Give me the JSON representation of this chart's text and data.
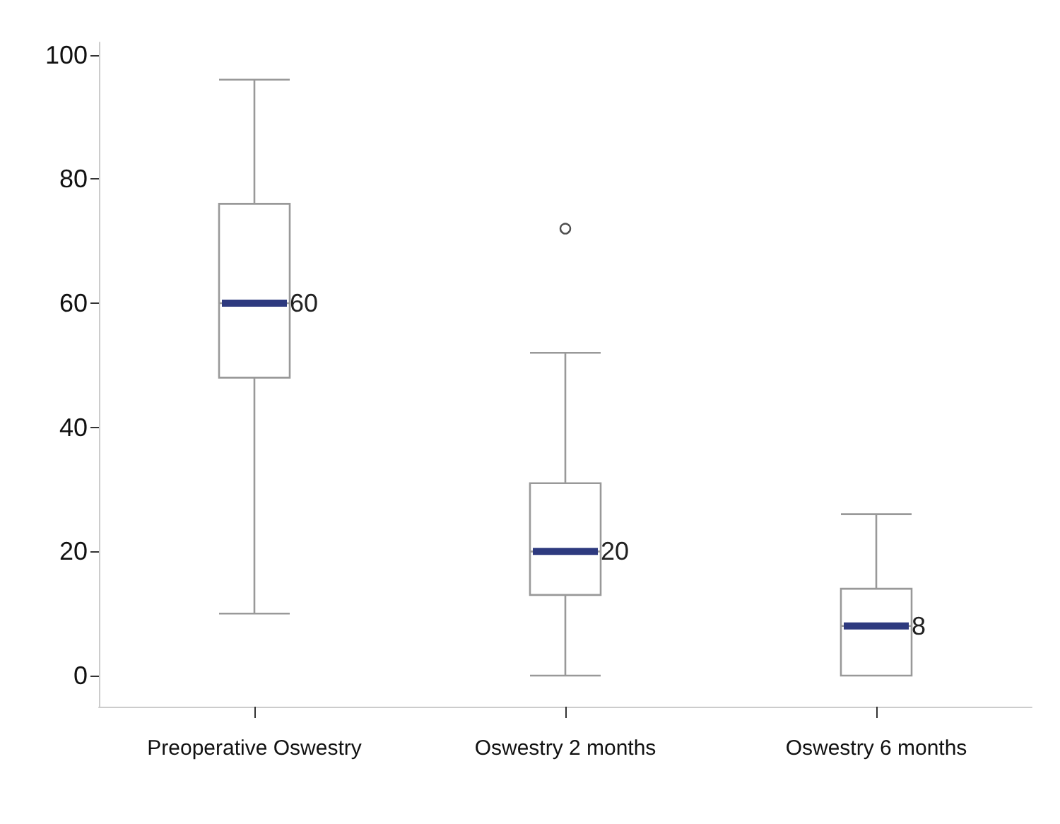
{
  "chart_data": {
    "type": "box",
    "categories": [
      "Preoperative Oswestry",
      "Oswestry 2 months",
      "Oswestry 6 months"
    ],
    "boxes": [
      {
        "low": 10,
        "q1": 48,
        "median": 60,
        "q3": 76,
        "high": 96
      },
      {
        "low": 0,
        "q1": 13,
        "median": 20,
        "q3": 31,
        "high": 52,
        "outliers": [
          72
        ]
      },
      {
        "low": 0,
        "q1": 0,
        "median": 8,
        "q3": 14,
        "high": 26
      }
    ],
    "color": "#999999",
    "ylim": [
      -5,
      102
    ],
    "yticks": [
      0,
      20,
      40,
      60,
      80,
      100
    ],
    "grid": false,
    "value_labels": [
      "60",
      "20",
      "8"
    ]
  }
}
